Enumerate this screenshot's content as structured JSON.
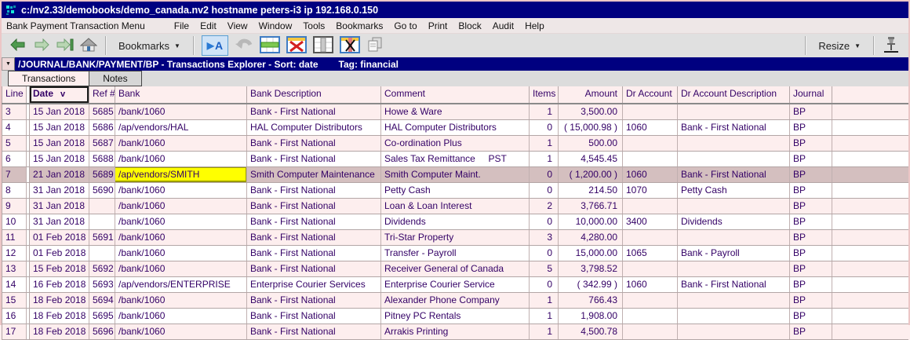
{
  "window": {
    "title": "c:/nv2.33/demobooks/demo_canada.nv2 hostname peters-i3 ip 192.168.0.150"
  },
  "menubar": {
    "context_label": "Bank Payment Transaction Menu",
    "items": [
      "File",
      "Edit",
      "View",
      "Window",
      "Tools",
      "Bookmarks",
      "Go to",
      "Print",
      "Block",
      "Audit",
      "Help"
    ]
  },
  "toolbar": {
    "bookmarks_label": "Bookmarks",
    "resize_label": "Resize",
    "dropdown_glyph": "▼",
    "icons": [
      "back-icon",
      "forward-icon",
      "go-last-icon",
      "home-icon",
      "edit-cell-icon",
      "undo-icon",
      "insert-row-icon",
      "delete-row-icon",
      "select-column-icon",
      "delete-column-icon",
      "copy-icon",
      "pin-icon"
    ]
  },
  "pathbar": {
    "dropdown_glyph": "▼",
    "path": "/JOURNAL/BANK/PAYMENT/BP - Transactions Explorer - Sort: date",
    "tag": "Tag: financial"
  },
  "tabs": [
    {
      "label": "Transactions",
      "active": true
    },
    {
      "label": "Notes",
      "active": false
    }
  ],
  "table": {
    "columns": [
      {
        "label": "Line"
      },
      {
        "label": "Date",
        "sort": "v"
      },
      {
        "label": "Ref #"
      },
      {
        "label": "Bank"
      },
      {
        "label": "Bank Description"
      },
      {
        "label": "Comment"
      },
      {
        "label": "Items"
      },
      {
        "label": "Amount"
      },
      {
        "label": "Dr Account"
      },
      {
        "label": "Dr Account Description"
      },
      {
        "label": "Journal"
      }
    ],
    "rows": [
      {
        "cells": [
          "3",
          "15 Jan 2018",
          "5685",
          "/bank/1060",
          "Bank - First National",
          "Howe & Ware",
          "1",
          "3,500.00",
          "",
          "",
          "BP"
        ]
      },
      {
        "cells": [
          "4",
          "15 Jan 2018",
          "5686",
          "/ap/vendors/HAL",
          "HAL Computer Distributors",
          "HAL Computer Distributors",
          "0",
          "( 15,000.98 )",
          "1060",
          "Bank - First National",
          "BP"
        ]
      },
      {
        "cells": [
          "5",
          "15 Jan 2018",
          "5687",
          "/bank/1060",
          "Bank - First National",
          "Co-ordination Plus",
          "1",
          "500.00",
          "",
          "",
          "BP"
        ]
      },
      {
        "cells": [
          "6",
          "15 Jan 2018",
          "5688",
          "/bank/1060",
          "Bank - First National",
          "Sales Tax Remittance     PST",
          "1",
          "4,545.45",
          "",
          "",
          "BP"
        ]
      },
      {
        "cells": [
          "7",
          "21 Jan 2018",
          "5689",
          "/ap/vendors/SMITH",
          "Smith Computer Maintenance",
          "Smith Computer Maint.",
          "0",
          "( 1,200.00 )",
          "1060",
          "Bank - First National",
          "BP"
        ],
        "selected": true,
        "cursor_col": 3
      },
      {
        "cells": [
          "8",
          "31 Jan 2018",
          "5690",
          "/bank/1060",
          "Bank - First National",
          "Petty Cash",
          "0",
          "214.50",
          "1070",
          "Petty Cash",
          "BP"
        ]
      },
      {
        "cells": [
          "9",
          "31 Jan 2018",
          "",
          "/bank/1060",
          "Bank - First National",
          "Loan & Loan Interest",
          "2",
          "3,766.71",
          "",
          "",
          "BP"
        ]
      },
      {
        "cells": [
          "10",
          "31 Jan 2018",
          "",
          "/bank/1060",
          "Bank - First National",
          "Dividends",
          "0",
          "10,000.00",
          "3400",
          "Dividends",
          "BP"
        ]
      },
      {
        "cells": [
          "11",
          "01 Feb 2018",
          "5691",
          "/bank/1060",
          "Bank - First National",
          "Tri-Star Property",
          "3",
          "4,280.00",
          "",
          "",
          "BP"
        ]
      },
      {
        "cells": [
          "12",
          "01 Feb 2018",
          "",
          "/bank/1060",
          "Bank - First National",
          "Transfer - Payroll",
          "0",
          "15,000.00",
          "1065",
          "Bank - Payroll",
          "BP"
        ]
      },
      {
        "cells": [
          "13",
          "15 Feb 2018",
          "5692",
          "/bank/1060",
          "Bank - First National",
          "Receiver General of Canada",
          "5",
          "3,798.52",
          "",
          "",
          "BP"
        ]
      },
      {
        "cells": [
          "14",
          "16 Feb 2018",
          "5693",
          "/ap/vendors/ENTERPRISE",
          "Enterprise Courier Services",
          "Enterprise Courier Service",
          "0",
          "( 342.99 )",
          "1060",
          "Bank - First National",
          "BP"
        ]
      },
      {
        "cells": [
          "15",
          "18 Feb 2018",
          "5694",
          "/bank/1060",
          "Bank - First National",
          "Alexander Phone Company",
          "1",
          "766.43",
          "",
          "",
          "BP"
        ]
      },
      {
        "cells": [
          "16",
          "18 Feb 2018",
          "5695",
          "/bank/1060",
          "Bank - First National",
          "Pitney PC Rentals",
          "1",
          "1,908.00",
          "",
          "",
          "BP"
        ]
      },
      {
        "cells": [
          "17",
          "18 Feb 2018",
          "5696",
          "/bank/1060",
          "Bank - First National",
          "Arrakis Printing",
          "1",
          "4,500.78",
          "",
          "",
          "BP"
        ]
      }
    ]
  },
  "colors": {
    "titlebar": "#000080",
    "pathbar": "#000080",
    "row_pink": "#fdeeee",
    "row_white": "#ffffff",
    "row_selected": "#d4bfbf",
    "cursor_cell": "#ffff00",
    "cell_text": "#330066"
  }
}
